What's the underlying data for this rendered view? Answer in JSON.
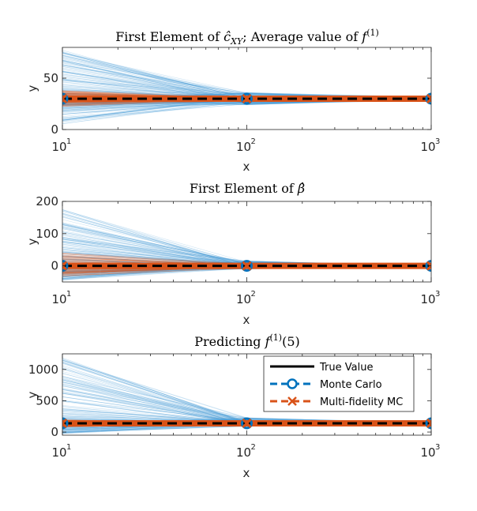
{
  "colors": {
    "true_value": "#000000",
    "monte_carlo": "#0072bd",
    "multi_fidelity": "#d95319",
    "mc_traces": "#4d9ed8",
    "mfmc_traces": "#d95319"
  },
  "legend": {
    "placement": "inside-upper-right-of-third-panel",
    "entries": [
      "True Value",
      "Monte Carlo",
      "Multi-fidelity MC"
    ]
  },
  "chart_data": [
    {
      "type": "line",
      "title": "First Element of ĉXY; Average value of f(1)",
      "title_parts": {
        "prefix": "First Element of ",
        "symbol": "ĉ",
        "sub": "XY",
        "middle": "; Average value of ",
        "f": "f",
        "sup": "(1)"
      },
      "xlabel": "x",
      "ylabel": "y",
      "xscale": "log",
      "xlim": [
        10,
        1000
      ],
      "ylim": [
        0,
        80
      ],
      "yticks": [
        0,
        50
      ],
      "xtick_labels": [
        {
          "base": "10",
          "exp": "1"
        },
        {
          "base": "10",
          "exp": "2"
        },
        {
          "base": "10",
          "exp": "3"
        }
      ],
      "x": [
        10,
        100,
        1000
      ],
      "true_value": 30,
      "series": [
        {
          "name": "True Value",
          "values": [
            30,
            30,
            30
          ]
        },
        {
          "name": "Monte Carlo",
          "values": [
            30,
            30,
            30
          ]
        },
        {
          "name": "Multi-fidelity MC",
          "values": [
            30,
            30,
            30
          ]
        }
      ],
      "mc_spread": [
        [
          5,
          78
        ],
        [
          24,
          36
        ],
        [
          28,
          32
        ]
      ],
      "mfmc_spread": [
        [
          22,
          38
        ],
        [
          27,
          33
        ],
        [
          29,
          31
        ]
      ],
      "grid": false
    },
    {
      "type": "line",
      "title": "First Element of β̂",
      "title_parts": {
        "prefix": "First Element of ",
        "symbol": "β̂"
      },
      "xlabel": "x",
      "ylabel": "y",
      "xscale": "log",
      "xlim": [
        10,
        1000
      ],
      "ylim": [
        -50,
        200
      ],
      "yticks": [
        0,
        100,
        200
      ],
      "xtick_labels": [
        {
          "base": "10",
          "exp": "1"
        },
        {
          "base": "10",
          "exp": "2"
        },
        {
          "base": "10",
          "exp": "3"
        }
      ],
      "x": [
        10,
        100,
        1000
      ],
      "true_value": 0,
      "series": [
        {
          "name": "True Value",
          "values": [
            0,
            0,
            0
          ]
        },
        {
          "name": "Monte Carlo",
          "values": [
            0,
            0,
            0
          ]
        },
        {
          "name": "Multi-fidelity MC",
          "values": [
            0,
            0,
            0
          ]
        }
      ],
      "mc_spread": [
        [
          -45,
          175
        ],
        [
          -10,
          15
        ],
        [
          -3,
          4
        ]
      ],
      "mfmc_spread": [
        [
          -35,
          40
        ],
        [
          -8,
          8
        ],
        [
          -2,
          2
        ]
      ],
      "grid": false
    },
    {
      "type": "line",
      "title": "Predicting f(1)(5)",
      "title_parts": {
        "prefix": "Predicting ",
        "f": "f",
        "sup": "(1)",
        "suffix": "(5)"
      },
      "xlabel": "x",
      "ylabel": "y",
      "xscale": "log",
      "xlim": [
        10,
        1000
      ],
      "ylim": [
        -50,
        1250
      ],
      "yticks": [
        0,
        500,
        1000
      ],
      "xtick_labels": [
        {
          "base": "10",
          "exp": "1"
        },
        {
          "base": "10",
          "exp": "2"
        },
        {
          "base": "10",
          "exp": "3"
        }
      ],
      "x": [
        10,
        100,
        1000
      ],
      "true_value": 140,
      "series": [
        {
          "name": "True Value",
          "values": [
            140,
            140,
            140
          ]
        },
        {
          "name": "Monte Carlo",
          "values": [
            140,
            140,
            140
          ]
        },
        {
          "name": "Multi-fidelity MC",
          "values": [
            140,
            140,
            140
          ]
        }
      ],
      "mc_spread": [
        [
          -30,
          1220
        ],
        [
          90,
          230
        ],
        [
          120,
          165
        ]
      ],
      "mfmc_spread": [
        [
          80,
          200
        ],
        [
          120,
          160
        ],
        [
          132,
          148
        ]
      ],
      "grid": false
    }
  ]
}
